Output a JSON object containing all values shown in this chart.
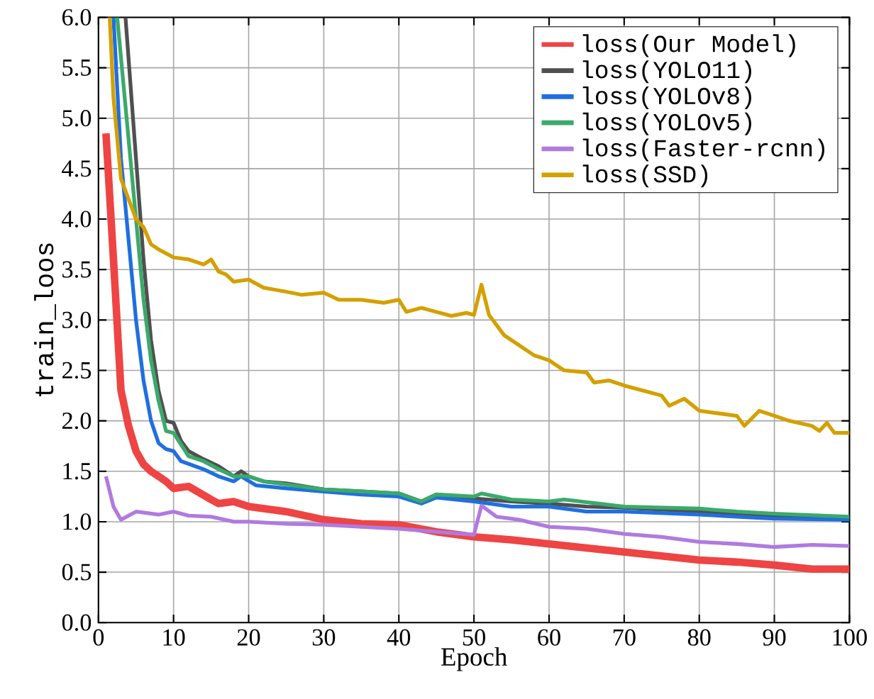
{
  "chart_data": {
    "type": "line",
    "xlabel": "Epoch",
    "ylabel": "train_loos",
    "xlim": [
      0,
      100
    ],
    "ylim": [
      0,
      6
    ],
    "xticks": [
      0,
      10,
      20,
      30,
      40,
      50,
      60,
      70,
      80,
      90,
      100
    ],
    "yticks": [
      {
        "value": 0,
        "label": "0.0"
      },
      {
        "value": 0.5,
        "label": "0.5"
      },
      {
        "value": 1,
        "label": "1.0"
      },
      {
        "value": 1.5,
        "label": "1.5"
      },
      {
        "value": 2,
        "label": "2.0"
      },
      {
        "value": 2.5,
        "label": "2.5"
      },
      {
        "value": 3,
        "label": "3.0"
      },
      {
        "value": 3.5,
        "label": "3.5"
      },
      {
        "value": 4,
        "label": "4.0"
      },
      {
        "value": 4.5,
        "label": "4.5"
      },
      {
        "value": 5,
        "label": "5.0"
      },
      {
        "value": 5.5,
        "label": "5.5"
      },
      {
        "value": 6,
        "label": "6.0"
      }
    ],
    "grid": true,
    "legend": "top right",
    "marker": "none",
    "line_style": "solid",
    "series": [
      {
        "name": "loss(Our Model)",
        "color": "#ee4444",
        "x": [
          1,
          2,
          3,
          4,
          5,
          6,
          7,
          8,
          9,
          10,
          12,
          15,
          16,
          18,
          20,
          25,
          30,
          35,
          40,
          45,
          50,
          55,
          60,
          65,
          70,
          75,
          80,
          85,
          90,
          95,
          100
        ],
        "values": [
          4.85,
          3.6,
          2.3,
          1.95,
          1.7,
          1.57,
          1.5,
          1.45,
          1.4,
          1.33,
          1.35,
          1.22,
          1.18,
          1.2,
          1.15,
          1.1,
          1.02,
          0.98,
          0.97,
          0.9,
          0.85,
          0.82,
          0.78,
          0.74,
          0.7,
          0.66,
          0.62,
          0.6,
          0.57,
          0.53,
          0.53
        ]
      },
      {
        "name": "loss(YOLO11)",
        "color": "#505050",
        "x": [
          3.6,
          5,
          6,
          7,
          8,
          9,
          10,
          11,
          12,
          14,
          16,
          18,
          19,
          20,
          22,
          25,
          30,
          35,
          40,
          43,
          45,
          50,
          55,
          60,
          65,
          70,
          80,
          90,
          100
        ],
        "values": [
          6.0,
          4.6,
          3.6,
          2.8,
          2.3,
          2.0,
          1.98,
          1.8,
          1.7,
          1.62,
          1.55,
          1.45,
          1.5,
          1.45,
          1.4,
          1.38,
          1.32,
          1.3,
          1.28,
          1.2,
          1.27,
          1.23,
          1.2,
          1.18,
          1.15,
          1.14,
          1.1,
          1.05,
          1.03
        ]
      },
      {
        "name": "loss(YOLOv8)",
        "color": "#1f6fe0",
        "x": [
          2,
          3,
          4,
          5,
          6,
          7,
          8,
          9,
          10,
          11,
          14,
          16,
          18,
          19,
          21,
          25,
          30,
          35,
          40,
          43,
          45,
          50,
          55,
          60,
          65,
          70,
          80,
          85,
          90,
          100
        ],
        "values": [
          6.0,
          4.6,
          3.8,
          3.0,
          2.4,
          2.0,
          1.78,
          1.72,
          1.7,
          1.6,
          1.52,
          1.45,
          1.4,
          1.45,
          1.36,
          1.33,
          1.3,
          1.27,
          1.25,
          1.18,
          1.24,
          1.2,
          1.15,
          1.15,
          1.1,
          1.1,
          1.07,
          1.05,
          1.03,
          1.02
        ]
      },
      {
        "name": "loss(YOLOv5)",
        "color": "#3aaa6a",
        "x": [
          2.5,
          4,
          5,
          6,
          7,
          8,
          9,
          10,
          12,
          14,
          16,
          18,
          20,
          22,
          25,
          30,
          35,
          40,
          43,
          45,
          50,
          51,
          55,
          60,
          62,
          70,
          80,
          85,
          90,
          100
        ],
        "values": [
          6.0,
          4.8,
          4.0,
          3.2,
          2.6,
          2.2,
          1.9,
          1.88,
          1.65,
          1.6,
          1.52,
          1.45,
          1.45,
          1.4,
          1.37,
          1.32,
          1.3,
          1.28,
          1.2,
          1.27,
          1.25,
          1.28,
          1.22,
          1.2,
          1.22,
          1.15,
          1.13,
          1.1,
          1.08,
          1.05
        ]
      },
      {
        "name": "loss(Faster-rcnn)",
        "color": "#b07ae0",
        "x": [
          1,
          2,
          3,
          5,
          8,
          10,
          12,
          15,
          18,
          20,
          25,
          30,
          35,
          40,
          45,
          50,
          51,
          53,
          56,
          60,
          65,
          70,
          75,
          80,
          85,
          90,
          95,
          100
        ],
        "values": [
          1.45,
          1.15,
          1.02,
          1.1,
          1.07,
          1.1,
          1.06,
          1.05,
          1.0,
          1.0,
          0.98,
          0.97,
          0.95,
          0.93,
          0.9,
          0.87,
          1.16,
          1.05,
          1.02,
          0.95,
          0.93,
          0.88,
          0.85,
          0.8,
          0.78,
          0.75,
          0.77,
          0.76
        ]
      },
      {
        "name": "loss(SSD)",
        "color": "#d4a000",
        "x": [
          1.5,
          2,
          3,
          4,
          5,
          6,
          7,
          8,
          10,
          12,
          14,
          15,
          16,
          17,
          18,
          20,
          22,
          25,
          27,
          30,
          32,
          35,
          38,
          40,
          41,
          43,
          45,
          47,
          49,
          50,
          51,
          52,
          54,
          56,
          58,
          60,
          62,
          65,
          66,
          68,
          70,
          75,
          76,
          78,
          80,
          82,
          85,
          86,
          88,
          90,
          92,
          95,
          96,
          97,
          98,
          100
        ],
        "values": [
          6.0,
          5.2,
          4.4,
          4.2,
          4.0,
          3.92,
          3.75,
          3.7,
          3.62,
          3.6,
          3.55,
          3.6,
          3.48,
          3.45,
          3.38,
          3.4,
          3.32,
          3.28,
          3.25,
          3.27,
          3.2,
          3.2,
          3.17,
          3.2,
          3.08,
          3.12,
          3.08,
          3.04,
          3.07,
          3.05,
          3.35,
          3.05,
          2.85,
          2.75,
          2.65,
          2.6,
          2.5,
          2.48,
          2.38,
          2.4,
          2.35,
          2.25,
          2.15,
          2.22,
          2.1,
          2.08,
          2.05,
          1.95,
          2.1,
          2.05,
          2.0,
          1.95,
          1.9,
          1.98,
          1.88,
          1.88
        ]
      }
    ]
  }
}
